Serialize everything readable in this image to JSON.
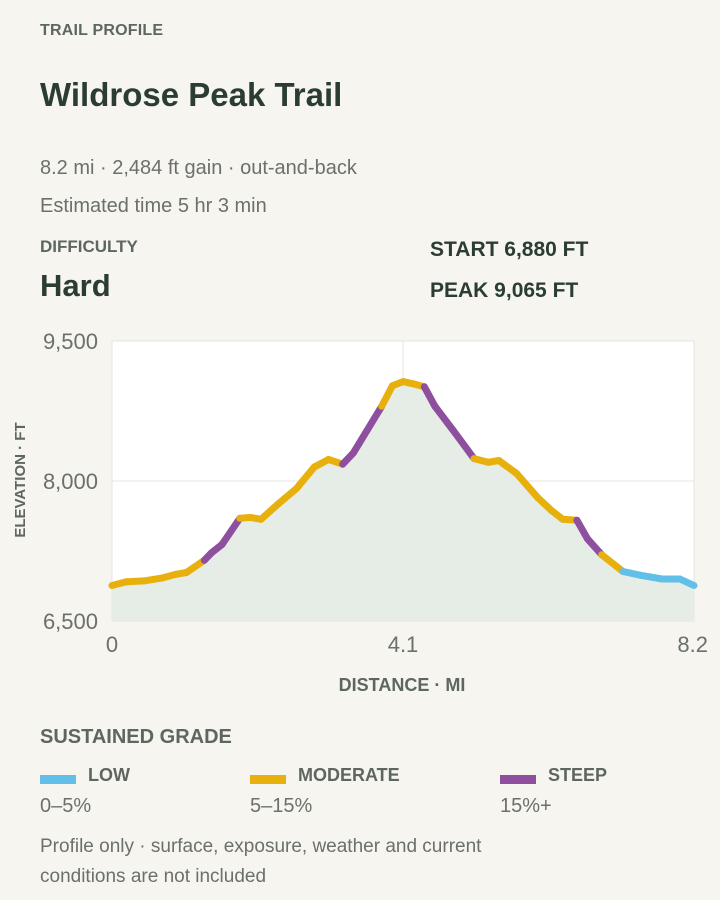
{
  "header": {
    "eyebrow": "TRAIL PROFILE",
    "title": "Wildrose Peak Trail",
    "meta_line": "8.2 mi · 2,484 ft gain · out-and-back",
    "time_line": "Estimated time 5 hr 3 min"
  },
  "difficulty": {
    "label": "DIFFICULTY",
    "value": "Hard"
  },
  "stats": {
    "start": "START 6,880 FT",
    "peak": "PEAK 9,065 FT"
  },
  "chart_data": {
    "type": "line",
    "xlabel": "DISTANCE · MI",
    "ylabel": "ELEVATION · FT",
    "xlim": [
      0,
      8.2
    ],
    "ylim": [
      6500,
      9500
    ],
    "x_ticks": [
      0,
      4.1,
      8.2
    ],
    "x_tick_labels": [
      "0",
      "4.1",
      "8.2"
    ],
    "y_ticks": [
      6500,
      8000,
      9500
    ],
    "y_tick_labels": [
      "6,500",
      "8,000",
      "9,500"
    ],
    "grid": true,
    "fill_color": "#e6ede6",
    "grade_colors": {
      "low": "#62bfe8",
      "moderate": "#e8b00c",
      "steep": "#8e4f9e"
    },
    "profile": [
      {
        "x": 0.0,
        "y": 6880,
        "grade": "moderate"
      },
      {
        "x": 0.2,
        "y": 6920,
        "grade": "moderate"
      },
      {
        "x": 0.45,
        "y": 6930,
        "grade": "moderate"
      },
      {
        "x": 0.7,
        "y": 6960,
        "grade": "moderate"
      },
      {
        "x": 0.9,
        "y": 7000,
        "grade": "moderate"
      },
      {
        "x": 1.05,
        "y": 7020,
        "grade": "moderate"
      },
      {
        "x": 1.3,
        "y": 7150,
        "grade": "moderate"
      },
      {
        "x": 1.4,
        "y": 7230,
        "grade": "steep"
      },
      {
        "x": 1.55,
        "y": 7320,
        "grade": "steep"
      },
      {
        "x": 1.8,
        "y": 7600,
        "grade": "steep"
      },
      {
        "x": 1.95,
        "y": 7610,
        "grade": "moderate"
      },
      {
        "x": 2.1,
        "y": 7590,
        "grade": "moderate"
      },
      {
        "x": 2.35,
        "y": 7760,
        "grade": "moderate"
      },
      {
        "x": 2.6,
        "y": 7920,
        "grade": "moderate"
      },
      {
        "x": 2.85,
        "y": 8150,
        "grade": "moderate"
      },
      {
        "x": 3.05,
        "y": 8230,
        "grade": "moderate"
      },
      {
        "x": 3.25,
        "y": 8180,
        "grade": "moderate"
      },
      {
        "x": 3.4,
        "y": 8300,
        "grade": "steep"
      },
      {
        "x": 3.6,
        "y": 8550,
        "grade": "steep"
      },
      {
        "x": 3.8,
        "y": 8800,
        "grade": "steep"
      },
      {
        "x": 3.95,
        "y": 9020,
        "grade": "moderate"
      },
      {
        "x": 4.1,
        "y": 9065,
        "grade": "moderate"
      },
      {
        "x": 4.25,
        "y": 9040,
        "grade": "moderate"
      },
      {
        "x": 4.4,
        "y": 9010,
        "grade": "moderate"
      },
      {
        "x": 4.55,
        "y": 8800,
        "grade": "steep"
      },
      {
        "x": 4.8,
        "y": 8550,
        "grade": "steep"
      },
      {
        "x": 5.1,
        "y": 8240,
        "grade": "steep"
      },
      {
        "x": 5.3,
        "y": 8200,
        "grade": "moderate"
      },
      {
        "x": 5.45,
        "y": 8220,
        "grade": "moderate"
      },
      {
        "x": 5.7,
        "y": 8080,
        "grade": "moderate"
      },
      {
        "x": 6.0,
        "y": 7820,
        "grade": "moderate"
      },
      {
        "x": 6.2,
        "y": 7680,
        "grade": "moderate"
      },
      {
        "x": 6.35,
        "y": 7590,
        "grade": "moderate"
      },
      {
        "x": 6.55,
        "y": 7580,
        "grade": "moderate"
      },
      {
        "x": 6.7,
        "y": 7380,
        "grade": "steep"
      },
      {
        "x": 6.9,
        "y": 7210,
        "grade": "steep"
      },
      {
        "x": 7.2,
        "y": 7030,
        "grade": "moderate"
      },
      {
        "x": 7.45,
        "y": 6990,
        "grade": "low"
      },
      {
        "x": 7.75,
        "y": 6950,
        "grade": "low"
      },
      {
        "x": 8.0,
        "y": 6950,
        "grade": "low"
      },
      {
        "x": 8.2,
        "y": 6880,
        "grade": "low"
      }
    ]
  },
  "legend": {
    "heading": "SUSTAINED GRADE",
    "items": [
      {
        "key": "low",
        "name": "LOW",
        "range": "0–5%",
        "color": "#62bfe8"
      },
      {
        "key": "moderate",
        "name": "MODERATE",
        "range": "5–15%",
        "color": "#e8b00c"
      },
      {
        "key": "steep",
        "name": "STEEP",
        "range": "15%+",
        "color": "#8e4f9e"
      }
    ]
  },
  "footnote": "Profile only · surface, exposure, weather and current conditions are not included"
}
